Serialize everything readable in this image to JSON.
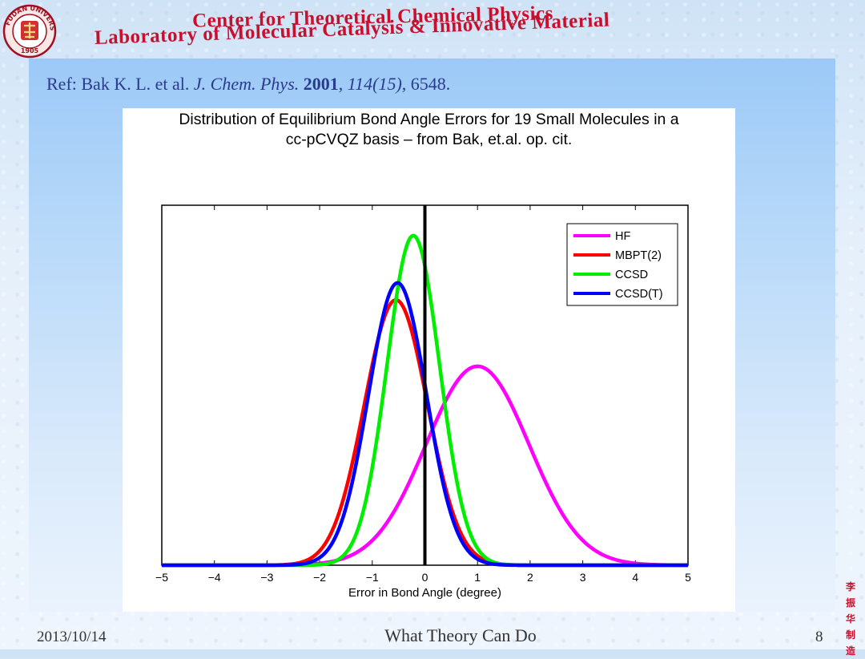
{
  "header": {
    "line1": "Center for Theoretical Chemical Physics",
    "line2": "Laboratory of Molecular Catalysis & Innovative Material",
    "logo": {
      "ring_text": "FUDAN UNIVERSITY",
      "year": "1905",
      "icon": "university-seal-icon"
    }
  },
  "reference": {
    "prefix": "Ref: Bak K. L. et al. ",
    "journal": "J. Chem. Phys.",
    "sep1": " ",
    "year": "2001",
    "sep2": ", ",
    "volume": "114(15)",
    "sep3": ", ",
    "pages": "6548."
  },
  "chart_data": {
    "type": "line",
    "title": [
      "Distribution of Equilibrium Bond Angle Errors for 19 Small Molecules in a",
      "cc-pCVQZ basis – from Bak, et.al.  op. cit."
    ],
    "xlabel": "Error in Bond Angle (degree)",
    "ylabel": "",
    "xlim": [
      -5,
      5
    ],
    "ylim": [
      0,
      0.95
    ],
    "xticks": [
      -5,
      -4,
      -3,
      -2,
      -1,
      0,
      1,
      2,
      3,
      4,
      5
    ],
    "xtick_labels": [
      "−5",
      "−4",
      "−3",
      "−2",
      "−1",
      "0",
      "1",
      "2",
      "3",
      "4",
      "5"
    ],
    "grid": false,
    "legend": "top-right",
    "vertical_line_x": 0,
    "series": [
      {
        "name": "HF",
        "color": "#ff00ff",
        "mean": 1.0,
        "sd": 0.98,
        "peak": 0.525
      },
      {
        "name": "MBPT(2)",
        "color": "#ff0000",
        "mean": -0.55,
        "sd": 0.6,
        "peak": 0.7
      },
      {
        "name": "CCSD",
        "color": "#00ee00",
        "mean": -0.22,
        "sd": 0.5,
        "peak": 0.87
      },
      {
        "name": "CCSD(T)",
        "color": "#0000ff",
        "mean": -0.52,
        "sd": 0.55,
        "peak": 0.745
      }
    ]
  },
  "footer": {
    "date": "2013/10/14",
    "title": "What Theory Can Do",
    "page": "8",
    "seal_chars": [
      "李",
      "振",
      "华",
      "制",
      "造"
    ]
  }
}
